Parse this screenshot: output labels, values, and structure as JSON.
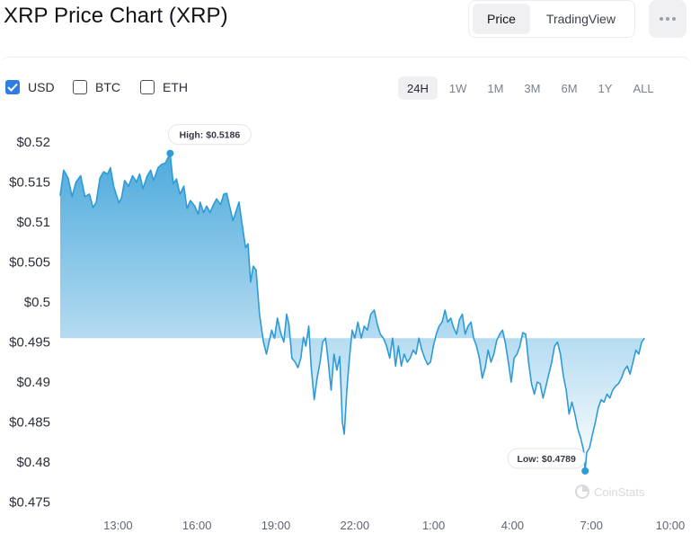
{
  "title": "XRP Price Chart (XRP)",
  "view_tabs": [
    {
      "label": "Price",
      "active": true
    },
    {
      "label": "TradingView",
      "active": false
    }
  ],
  "more_icon": "more-horizontal-icon",
  "currencies": [
    {
      "label": "USD",
      "checked": true
    },
    {
      "label": "BTC",
      "checked": false
    },
    {
      "label": "ETH",
      "checked": false
    }
  ],
  "ranges": [
    {
      "label": "24H",
      "active": true
    },
    {
      "label": "1W",
      "active": false
    },
    {
      "label": "1M",
      "active": false
    },
    {
      "label": "3M",
      "active": false
    },
    {
      "label": "6M",
      "active": false
    },
    {
      "label": "1Y",
      "active": false
    },
    {
      "label": "ALL",
      "active": false
    }
  ],
  "watermark": "CoinStats",
  "chart_data": {
    "type": "area",
    "title": "",
    "xlabel": "",
    "ylabel": "",
    "ylim": [
      0.4735,
      0.5235
    ],
    "yticks": [
      "$0.52",
      "$0.515",
      "$0.51",
      "$0.505",
      "$0.5",
      "$0.495",
      "$0.49",
      "$0.485",
      "$0.48",
      "$0.475"
    ],
    "ytick_values": [
      0.52,
      0.515,
      0.51,
      0.505,
      0.5,
      0.495,
      0.49,
      0.485,
      0.48,
      0.475
    ],
    "xlim": [
      10.8,
      34.0
    ],
    "xticks": [
      "13:00",
      "16:00",
      "19:00",
      "22:00",
      "1:00",
      "4:00",
      "7:00",
      "10:00"
    ],
    "xtick_values": [
      13,
      16,
      19,
      22,
      25,
      28,
      31,
      34
    ],
    "color": "#2e9bd6",
    "series": [
      {
        "name": "",
        "points": [
          [
            10.8,
            0.5133
          ],
          [
            10.93,
            0.5165
          ],
          [
            11.1,
            0.5155
          ],
          [
            11.25,
            0.5132
          ],
          [
            11.4,
            0.515
          ],
          [
            11.58,
            0.5158
          ],
          [
            11.74,
            0.5132
          ],
          [
            11.91,
            0.5135
          ],
          [
            12.05,
            0.5118
          ],
          [
            12.17,
            0.5125
          ],
          [
            12.31,
            0.5155
          ],
          [
            12.45,
            0.5163
          ],
          [
            12.6,
            0.516
          ],
          [
            12.71,
            0.5168
          ],
          [
            12.84,
            0.5144
          ],
          [
            13.03,
            0.5124
          ],
          [
            13.13,
            0.513
          ],
          [
            13.25,
            0.5152
          ],
          [
            13.4,
            0.5145
          ],
          [
            13.55,
            0.5158
          ],
          [
            13.7,
            0.515
          ],
          [
            13.82,
            0.516
          ],
          [
            13.95,
            0.5142
          ],
          [
            14.11,
            0.5158
          ],
          [
            14.24,
            0.5165
          ],
          [
            14.35,
            0.5152
          ],
          [
            14.52,
            0.5168
          ],
          [
            14.65,
            0.5172
          ],
          [
            14.8,
            0.5174
          ],
          [
            14.98,
            0.5186
          ],
          [
            15.1,
            0.5148
          ],
          [
            15.22,
            0.5154
          ],
          [
            15.35,
            0.5135
          ],
          [
            15.5,
            0.5145
          ],
          [
            15.62,
            0.5117
          ],
          [
            15.75,
            0.5127
          ],
          [
            15.92,
            0.512
          ],
          [
            16.05,
            0.511
          ],
          [
            16.12,
            0.5125
          ],
          [
            16.25,
            0.5112
          ],
          [
            16.37,
            0.512
          ],
          [
            16.5,
            0.5112
          ],
          [
            16.6,
            0.512
          ],
          [
            16.75,
            0.5129
          ],
          [
            16.9,
            0.5122
          ],
          [
            17.02,
            0.5135
          ],
          [
            17.13,
            0.5136
          ],
          [
            17.24,
            0.512
          ],
          [
            17.37,
            0.5102
          ],
          [
            17.48,
            0.5113
          ],
          [
            17.6,
            0.5125
          ],
          [
            17.72,
            0.5097
          ],
          [
            17.85,
            0.5068
          ],
          [
            17.94,
            0.5073
          ],
          [
            18.04,
            0.5025
          ],
          [
            18.14,
            0.5045
          ],
          [
            18.25,
            0.504
          ],
          [
            18.38,
            0.4985
          ],
          [
            18.53,
            0.495
          ],
          [
            18.64,
            0.4935
          ],
          [
            18.74,
            0.495
          ],
          [
            18.84,
            0.4965
          ],
          [
            18.95,
            0.4955
          ],
          [
            19.06,
            0.498
          ],
          [
            19.18,
            0.4962
          ],
          [
            19.3,
            0.495
          ],
          [
            19.41,
            0.4985
          ],
          [
            19.5,
            0.4972
          ],
          [
            19.61,
            0.493
          ],
          [
            19.73,
            0.4925
          ],
          [
            19.84,
            0.4918
          ],
          [
            19.95,
            0.493
          ],
          [
            20.05,
            0.4956
          ],
          [
            20.14,
            0.4945
          ],
          [
            20.25,
            0.497
          ],
          [
            20.34,
            0.492
          ],
          [
            20.46,
            0.4878
          ],
          [
            20.57,
            0.4905
          ],
          [
            20.68,
            0.4925
          ],
          [
            20.78,
            0.495
          ],
          [
            20.89,
            0.4955
          ],
          [
            20.98,
            0.493
          ],
          [
            21.1,
            0.489
          ],
          [
            21.21,
            0.4935
          ],
          [
            21.32,
            0.4915
          ],
          [
            21.43,
            0.4932
          ],
          [
            21.53,
            0.485
          ],
          [
            21.6,
            0.4835
          ],
          [
            21.7,
            0.489
          ],
          [
            21.8,
            0.493
          ],
          [
            21.9,
            0.4965
          ],
          [
            22.0,
            0.4955
          ],
          [
            22.12,
            0.4975
          ],
          [
            22.25,
            0.4955
          ],
          [
            22.36,
            0.497
          ],
          [
            22.48,
            0.4965
          ],
          [
            22.61,
            0.4985
          ],
          [
            22.74,
            0.499
          ],
          [
            22.86,
            0.4972
          ],
          [
            22.97,
            0.496
          ],
          [
            23.09,
            0.4955
          ],
          [
            23.21,
            0.4945
          ],
          [
            23.33,
            0.493
          ],
          [
            23.44,
            0.4955
          ],
          [
            23.55,
            0.492
          ],
          [
            23.66,
            0.4945
          ],
          [
            23.77,
            0.492
          ],
          [
            23.88,
            0.4935
          ],
          [
            24.0,
            0.4925
          ],
          [
            24.11,
            0.493
          ],
          [
            24.22,
            0.494
          ],
          [
            24.33,
            0.4935
          ],
          [
            24.44,
            0.4955
          ],
          [
            24.55,
            0.494
          ],
          [
            24.66,
            0.493
          ],
          [
            24.77,
            0.4922
          ],
          [
            24.88,
            0.4925
          ],
          [
            24.99,
            0.4945
          ],
          [
            25.1,
            0.496
          ],
          [
            25.21,
            0.497
          ],
          [
            25.32,
            0.4975
          ],
          [
            25.43,
            0.499
          ],
          [
            25.54,
            0.4975
          ],
          [
            25.65,
            0.498
          ],
          [
            25.76,
            0.4968
          ],
          [
            25.87,
            0.496
          ],
          [
            25.98,
            0.4978
          ],
          [
            26.09,
            0.4985
          ],
          [
            26.2,
            0.496
          ],
          [
            26.31,
            0.497
          ],
          [
            26.42,
            0.4975
          ],
          [
            26.52,
            0.4955
          ],
          [
            26.63,
            0.4945
          ],
          [
            26.74,
            0.493
          ],
          [
            26.85,
            0.4905
          ],
          [
            26.96,
            0.4918
          ],
          [
            27.07,
            0.494
          ],
          [
            27.18,
            0.4925
          ],
          [
            27.29,
            0.4935
          ],
          [
            27.4,
            0.4952
          ],
          [
            27.51,
            0.496
          ],
          [
            27.62,
            0.4965
          ],
          [
            27.73,
            0.4948
          ],
          [
            27.84,
            0.4925
          ],
          [
            27.95,
            0.49
          ],
          [
            28.06,
            0.493
          ],
          [
            28.17,
            0.4935
          ],
          [
            28.28,
            0.4945
          ],
          [
            28.39,
            0.4962
          ],
          [
            28.5,
            0.496
          ],
          [
            28.61,
            0.4925
          ],
          [
            28.72,
            0.4898
          ],
          [
            28.83,
            0.4885
          ],
          [
            28.94,
            0.49
          ],
          [
            29.05,
            0.4898
          ],
          [
            29.16,
            0.488
          ],
          [
            29.27,
            0.4895
          ],
          [
            29.38,
            0.491
          ],
          [
            29.49,
            0.4925
          ],
          [
            29.6,
            0.4945
          ],
          [
            29.71,
            0.495
          ],
          [
            29.82,
            0.4935
          ],
          [
            29.93,
            0.4908
          ],
          [
            30.04,
            0.489
          ],
          [
            30.15,
            0.486
          ],
          [
            30.26,
            0.4875
          ],
          [
            30.37,
            0.486
          ],
          [
            30.48,
            0.4842
          ],
          [
            30.59,
            0.483
          ],
          [
            30.7,
            0.4815
          ],
          [
            30.76,
            0.4789
          ],
          [
            30.82,
            0.4812
          ],
          [
            30.93,
            0.4818
          ],
          [
            31.04,
            0.4835
          ],
          [
            31.15,
            0.485
          ],
          [
            31.26,
            0.4868
          ],
          [
            31.37,
            0.4878
          ],
          [
            31.48,
            0.4875
          ],
          [
            31.59,
            0.4885
          ],
          [
            31.7,
            0.488
          ],
          [
            31.81,
            0.489
          ],
          [
            31.92,
            0.4895
          ],
          [
            32.03,
            0.4898
          ],
          [
            32.14,
            0.4905
          ],
          [
            32.25,
            0.4915
          ],
          [
            32.36,
            0.492
          ],
          [
            32.47,
            0.491
          ],
          [
            32.58,
            0.4925
          ],
          [
            32.69,
            0.494
          ],
          [
            32.8,
            0.4935
          ],
          [
            32.91,
            0.495
          ],
          [
            33.02,
            0.4955
          ]
        ]
      }
    ],
    "annotations": [
      {
        "label": "High: $0.5186",
        "x": 14.98,
        "y": 0.5186
      },
      {
        "label": "Low: $0.4789",
        "x": 30.76,
        "y": 0.4789
      }
    ],
    "grid": false,
    "legend": "none"
  }
}
